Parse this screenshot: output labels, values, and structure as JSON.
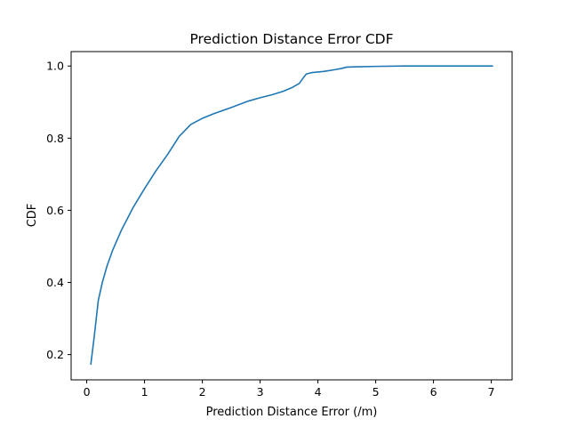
{
  "chart_data": {
    "type": "line",
    "title": "Prediction Distance Error CDF",
    "xlabel": "Prediction Distance Error (/m)",
    "ylabel": "CDF",
    "xlim": [
      -0.27,
      7.36
    ],
    "ylim": [
      0.13,
      1.04
    ],
    "xticks": [
      0,
      1,
      2,
      3,
      4,
      5,
      6,
      7
    ],
    "yticks": [
      0.2,
      0.4,
      0.6,
      0.8,
      1.0
    ],
    "xtick_labels": [
      "0",
      "1",
      "2",
      "3",
      "4",
      "5",
      "6",
      "7"
    ],
    "ytick_labels": [
      "0.2",
      "0.4",
      "0.6",
      "0.8",
      "1.0"
    ],
    "grid": false,
    "legend": "none",
    "series": [
      {
        "color": "#1f77b4",
        "x": [
          0.07,
          0.13,
          0.2,
          0.27,
          0.35,
          0.45,
          0.6,
          0.8,
          1.0,
          1.2,
          1.4,
          1.6,
          1.8,
          2.0,
          2.2,
          2.5,
          2.8,
          3.0,
          3.2,
          3.4,
          3.55,
          3.68,
          3.75,
          3.8,
          3.9,
          4.1,
          4.3,
          4.4,
          4.5,
          4.7,
          5.0,
          5.5,
          6.0,
          7.03
        ],
        "y": [
          0.172,
          0.25,
          0.35,
          0.4,
          0.445,
          0.49,
          0.545,
          0.607,
          0.66,
          0.71,
          0.755,
          0.805,
          0.838,
          0.855,
          0.868,
          0.885,
          0.903,
          0.912,
          0.92,
          0.93,
          0.94,
          0.952,
          0.968,
          0.978,
          0.982,
          0.985,
          0.99,
          0.993,
          0.997,
          0.998,
          0.999,
          1.0,
          1.0,
          1.0
        ]
      }
    ]
  }
}
